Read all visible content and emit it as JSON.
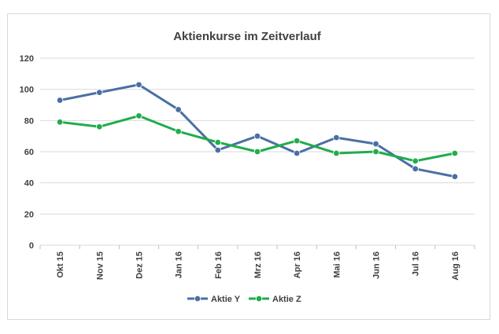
{
  "chart_data": {
    "type": "line",
    "title": "Aktienkurse im Zeitverlauf",
    "categories": [
      "Okt 15",
      "Nov 15",
      "Dez 15",
      "Jan 16",
      "Feb 16",
      "Mrz 16",
      "Apr 16",
      "Mai 16",
      "Jun 16",
      "Jul 16",
      "Aug 16"
    ],
    "ylim": [
      0,
      120
    ],
    "yticks": [
      0,
      20,
      40,
      60,
      80,
      100,
      120
    ],
    "grid": true,
    "legend_position": "bottom",
    "series": [
      {
        "name": "Aktie Y",
        "color": "#4a6fa5",
        "values": [
          93,
          98,
          103,
          87,
          61,
          70,
          59,
          69,
          65,
          49,
          44
        ]
      },
      {
        "name": "Aktie Z",
        "color": "#1fad4b",
        "values": [
          79,
          76,
          83,
          73,
          66,
          60,
          67,
          59,
          60,
          54,
          59
        ]
      }
    ]
  }
}
